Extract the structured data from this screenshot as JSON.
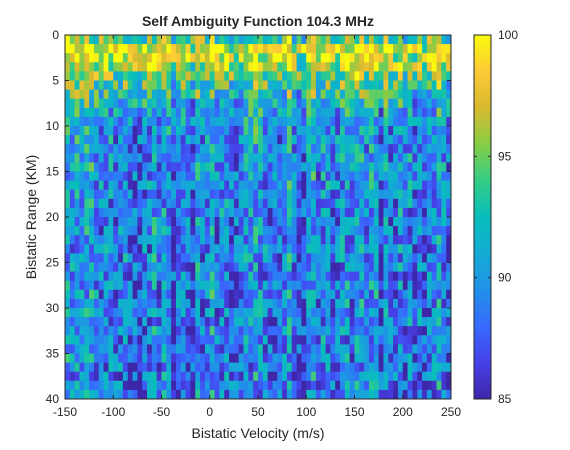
{
  "chart_data": {
    "type": "heatmap",
    "title": "Self Ambiguity Function 104.3 MHz",
    "xlabel": "Bistatic Velocity (m/s)",
    "ylabel": "Bistatic Range (KM)",
    "xlim": [
      -150,
      250
    ],
    "ylim": [
      0,
      40
    ],
    "y_direction": "reversed",
    "xticks": [
      -150,
      -100,
      -50,
      0,
      50,
      100,
      150,
      200,
      250
    ],
    "yticks": [
      0,
      5,
      10,
      15,
      20,
      25,
      30,
      35,
      40
    ],
    "colorbar": {
      "colormap": "parula",
      "limits": [
        85,
        100
      ],
      "ticks": [
        85,
        90,
        95,
        100
      ]
    },
    "grid": {
      "x_bins": 80,
      "y_bins": 40,
      "x_step_mps": 5,
      "y_step_km": 1
    },
    "range_profile_mean": [
      {
        "range_km": 0,
        "value": 91
      },
      {
        "range_km": 1,
        "value": 98
      },
      {
        "range_km": 2,
        "value": 98
      },
      {
        "range_km": 3,
        "value": 97
      },
      {
        "range_km": 4,
        "value": 96
      },
      {
        "range_km": 5,
        "value": 94
      },
      {
        "range_km": 6,
        "value": 93
      },
      {
        "range_km": 7,
        "value": 92
      },
      {
        "range_km": 8,
        "value": 91
      },
      {
        "range_km": 10,
        "value": 90
      },
      {
        "range_km": 15,
        "value": 89.5
      },
      {
        "range_km": 20,
        "value": 89
      },
      {
        "range_km": 30,
        "value": 89
      },
      {
        "range_km": 40,
        "value": 88.5
      }
    ]
  }
}
